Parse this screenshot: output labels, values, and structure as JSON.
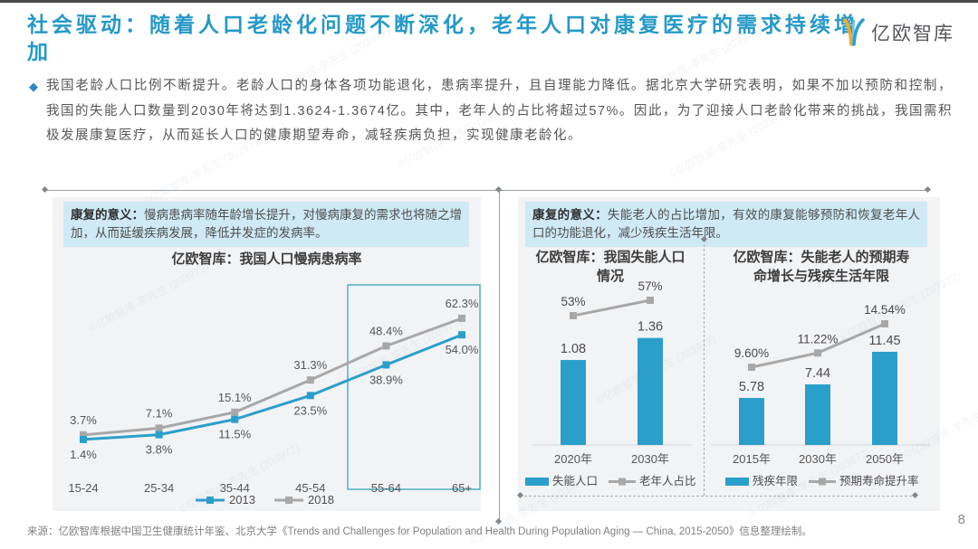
{
  "header": {
    "title": "社会驱动：随着人口老龄化问题不断深化，老年人口对康复医疗的需求持续增加",
    "logo_text": "亿欧智库"
  },
  "intro": {
    "bullet": "◆",
    "text": "我国老龄人口比例不断提升。老龄人口的身体各项功能退化，患病率提升，且自理能力降低。据北京大学研究表明，如果不加以预防和控制，我国的失能人口数量到2030年将达到1.3624-1.3674亿。其中，老年人的占比将超过57%。因此，为了迎接人口老龄化带来的挑战，我国需积极发展康复医疗，从而延长人口的健康期望寿命，减轻疾病负担，实现健康老龄化。"
  },
  "left_panel": {
    "note_label": "康复的意义：",
    "note_text": "慢病患病率随年龄增长提升，对慢病康复的需求也将随之增加，从而延缓疾病发展，降低并发症的发病率。"
  },
  "right_panel": {
    "note_label": "康复的意义：",
    "note_text": "失能老人的占比增加，有效的康复能够预防和恢复老年人口的功能退化，减少残疾生活年限。"
  },
  "footer": {
    "source": "来源：亿欧智库根据中国卫生健康统计年鉴、北京大学《Trends and Challenges for Population and Health During Population Aging — China, 2015-2050》信息整理绘制。",
    "page_number": "8"
  },
  "watermark": "©亿欧智库-李先生 (203972)",
  "colors": {
    "accent_blue": "#2599c8",
    "chart_blue": "#2b9fcb",
    "chart_gray": "#a8a8a8",
    "panel_bg": "#f2f3f5",
    "note_bg": "#cfe9f5",
    "highlight_border": "#4fb0c6"
  },
  "chart_data": [
    {
      "type": "line",
      "title": "亿欧智库：我国人口慢病患病率",
      "categories": [
        "15-24",
        "25-34",
        "35-44",
        "45-54",
        "55-64",
        "65+"
      ],
      "series": [
        {
          "name": "2013",
          "color": "#2b9fcb",
          "values": [
            1.4,
            3.8,
            11.5,
            23.5,
            38.9,
            54.0
          ],
          "labels": [
            "1.4%",
            "3.8%",
            "11.5%",
            "23.5%",
            "38.9%",
            "54.0%"
          ]
        },
        {
          "name": "2018",
          "color": "#a8a8a8",
          "values": [
            3.7,
            7.1,
            15.1,
            31.3,
            48.4,
            62.3
          ],
          "labels": [
            "3.7%",
            "7.1%",
            "15.1%",
            "31.3%",
            "48.4%",
            "62.3%"
          ]
        }
      ],
      "unit": "%",
      "ylim": [
        0,
        70
      ],
      "grid": false,
      "legend_position": "bottom",
      "highlight_categories": [
        "55-64",
        "65+"
      ]
    },
    {
      "type": "bar+line",
      "title": "亿欧智库：我国失能人口情况",
      "categories": [
        "2020年",
        "2030年"
      ],
      "bar_series": {
        "name": "失能人口",
        "unit": "亿",
        "values": [
          1.08,
          1.36
        ],
        "labels": [
          "1.08",
          "1.36"
        ]
      },
      "line_series": {
        "name": "老年人占比",
        "unit": "%",
        "values": [
          53,
          57
        ],
        "labels": [
          "53%",
          "57%"
        ]
      },
      "grid": false,
      "legend_position": "bottom"
    },
    {
      "type": "bar+line",
      "title": "亿欧智库：失能老人的预期寿命增长与残疾生活年限",
      "categories": [
        "2015年",
        "2030年",
        "2050年"
      ],
      "bar_series": {
        "name": "残疾年限",
        "unit": "年",
        "values": [
          5.78,
          7.44,
          11.45
        ],
        "labels": [
          "5.78",
          "7.44",
          "11.45"
        ]
      },
      "line_series": {
        "name": "预期寿命提升率",
        "unit": "%",
        "values": [
          9.6,
          11.22,
          14.54
        ],
        "labels": [
          "9.60%",
          "11.22%",
          "14.54%"
        ]
      },
      "grid": false,
      "legend_position": "bottom"
    }
  ]
}
